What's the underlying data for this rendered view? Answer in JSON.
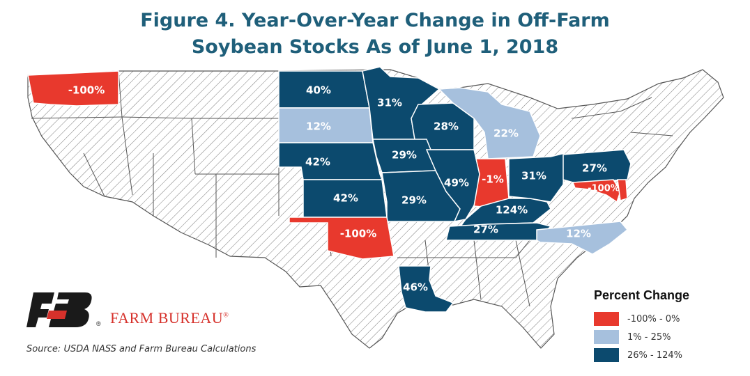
{
  "title": {
    "line1": "Figure 4. Year-Over-Year Change in Off-Farm",
    "line2": "Soybean Stocks As of June 1, 2018"
  },
  "colors": {
    "negative": "#e8392d",
    "low": "#a6c0dd",
    "high": "#0c4a6e",
    "no_data_hatch": "#7a7a7a",
    "title": "#1f5f7a"
  },
  "states": [
    {
      "id": "WA",
      "label": "-100%",
      "category": "negative"
    },
    {
      "id": "ND",
      "label": "40%",
      "category": "high"
    },
    {
      "id": "SD",
      "label": "12%",
      "category": "low"
    },
    {
      "id": "MN",
      "label": "31%",
      "category": "high"
    },
    {
      "id": "WI",
      "label": "28%",
      "category": "high"
    },
    {
      "id": "MI",
      "label": "22%",
      "category": "low"
    },
    {
      "id": "NE",
      "label": "42%",
      "category": "high"
    },
    {
      "id": "IA",
      "label": "29%",
      "category": "high"
    },
    {
      "id": "KS",
      "label": "42%",
      "category": "high"
    },
    {
      "id": "MO",
      "label": "29%",
      "category": "high"
    },
    {
      "id": "IL",
      "label": "49%",
      "category": "high"
    },
    {
      "id": "IN",
      "label": "-1%",
      "category": "negative"
    },
    {
      "id": "OH",
      "label": "31%",
      "category": "high"
    },
    {
      "id": "PA",
      "label": "27%",
      "category": "high"
    },
    {
      "id": "KY",
      "label": "124%",
      "category": "high"
    },
    {
      "id": "TN",
      "label": "27%",
      "category": "high"
    },
    {
      "id": "NC",
      "label": "12%",
      "category": "low"
    },
    {
      "id": "OK",
      "label": "-100%",
      "category": "negative"
    },
    {
      "id": "LA",
      "label": "46%",
      "category": "high"
    },
    {
      "id": "MD",
      "label": "-100%",
      "category": "negative"
    },
    {
      "id": "DE",
      "label": "",
      "category": "negative"
    }
  ],
  "legend": {
    "title": "Percent Change",
    "items": [
      {
        "label": "-100% - 0%",
        "category": "negative"
      },
      {
        "label": "1% - 25%",
        "category": "low"
      },
      {
        "label": "26% - 124%",
        "category": "high"
      }
    ]
  },
  "logo": {
    "mark": "FB",
    "name": "FARM BUREAU",
    "registered": "®"
  },
  "source": "Source: USDA NASS and Farm Bureau Calculations"
}
